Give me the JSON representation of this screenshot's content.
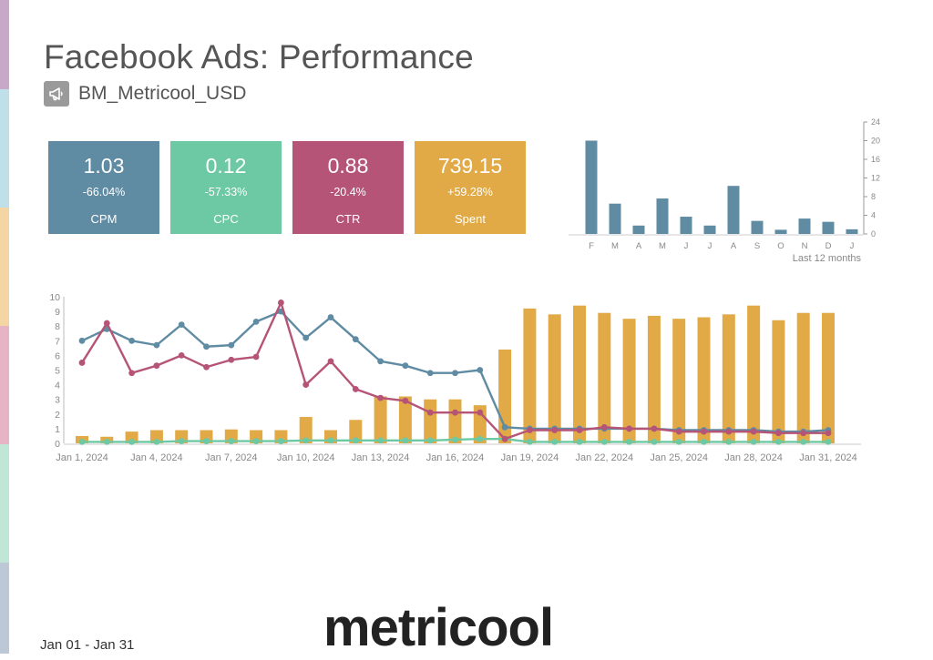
{
  "header": {
    "title": "Facebook Ads: Performance",
    "account": "BM_Metricool_USD"
  },
  "kpis": [
    {
      "value": "1.03",
      "change": "-66.04%",
      "label": "CPM",
      "color": "#5f8ba3"
    },
    {
      "value": "0.12",
      "change": "-57.33%",
      "label": "CPC",
      "color": "#6dc9a3"
    },
    {
      "value": "0.88",
      "change": "-20.4%",
      "label": "CTR",
      "color": "#b65477"
    },
    {
      "value": "739.15",
      "change": "+59.28%",
      "label": "Spent",
      "color": "#e1aa47"
    }
  ],
  "colors": {
    "strip": [
      "#c8a8c8",
      "#bfe0e8",
      "#f3d6a4",
      "#e6b4c4",
      "#bfe6d6",
      "#bcc8d6"
    ],
    "blue": "#5f8ba3",
    "green": "#6dc9a3",
    "pink": "#b65477",
    "orange": "#e1aa47",
    "axis": "#999999"
  },
  "chart_data": [
    {
      "type": "bar",
      "caption": "Last 12 months",
      "categories": [
        "F",
        "M",
        "A",
        "M",
        "J",
        "J",
        "A",
        "S",
        "O",
        "N",
        "D",
        "J"
      ],
      "values": [
        20,
        6.5,
        1.8,
        7.6,
        3.7,
        1.8,
        10.3,
        2.8,
        0.9,
        3.3,
        2.6,
        1
      ],
      "ylim": [
        0,
        24
      ],
      "yticks": [
        0,
        4,
        8,
        12,
        16,
        20,
        24
      ],
      "color": "#5f8ba3"
    },
    {
      "type": "bar+line",
      "x": [
        "Jan 1, 2024",
        "Jan 2, 2024",
        "Jan 3, 2024",
        "Jan 4, 2024",
        "Jan 5, 2024",
        "Jan 6, 2024",
        "Jan 7, 2024",
        "Jan 8, 2024",
        "Jan 9, 2024",
        "Jan 10, 2024",
        "Jan 11, 2024",
        "Jan 12, 2024",
        "Jan 13, 2024",
        "Jan 14, 2024",
        "Jan 15, 2024",
        "Jan 16, 2024",
        "Jan 17, 2024",
        "Jan 18, 2024",
        "Jan 19, 2024",
        "Jan 20, 2024",
        "Jan 21, 2024",
        "Jan 22, 2024",
        "Jan 23, 2024",
        "Jan 24, 2024",
        "Jan 25, 2024",
        "Jan 26, 2024",
        "Jan 27, 2024",
        "Jan 28, 2024",
        "Jan 29, 2024",
        "Jan 30, 2024",
        "Jan 31, 2024"
      ],
      "xtick_labels": [
        "Jan 1, 2024",
        "Jan 4, 2024",
        "Jan 7, 2024",
        "Jan 10, 2024",
        "Jan 13, 2024",
        "Jan 16, 2024",
        "Jan 19, 2024",
        "Jan 22, 2024",
        "Jan 25, 2024",
        "Jan 28, 2024",
        "Jan 31, 2024"
      ],
      "ylim": [
        0,
        10
      ],
      "yticks": [
        0,
        1,
        2,
        3,
        4,
        5,
        6,
        7,
        8,
        9,
        10
      ],
      "bars": {
        "color": "#e1aa47",
        "values": [
          0.5,
          0.45,
          0.8,
          0.9,
          0.9,
          0.9,
          0.95,
          0.9,
          0.9,
          1.8,
          0.9,
          1.6,
          3.2,
          3.2,
          3.0,
          3.0,
          2.6,
          6.4,
          9.2,
          8.8,
          9.4,
          8.9,
          8.5,
          8.7,
          8.5,
          8.6,
          8.8,
          9.4,
          8.4,
          8.9,
          8.9
        ]
      },
      "series": [
        {
          "color": "#5f8ba3",
          "values": [
            7.0,
            7.8,
            7.0,
            6.7,
            8.1,
            6.6,
            6.7,
            8.3,
            9.0,
            7.2,
            8.6,
            7.1,
            5.6,
            5.3,
            4.8,
            4.8,
            5.0,
            1.1,
            1.0,
            1.0,
            1.0,
            1.0,
            1.0,
            1.0,
            0.9,
            0.9,
            0.9,
            0.9,
            0.8,
            0.8,
            0.9
          ]
        },
        {
          "color": "#b65477",
          "values": [
            5.5,
            8.2,
            4.8,
            5.3,
            6.0,
            5.2,
            5.7,
            5.9,
            9.6,
            4.0,
            5.6,
            3.7,
            3.1,
            2.9,
            2.1,
            2.1,
            2.1,
            0.3,
            0.9,
            0.9,
            0.9,
            1.1,
            1.0,
            1.0,
            0.8,
            0.8,
            0.8,
            0.8,
            0.7,
            0.7,
            0.7
          ]
        },
        {
          "color": "#6dc9a3",
          "values": [
            0.1,
            0.1,
            0.1,
            0.1,
            0.15,
            0.15,
            0.15,
            0.15,
            0.15,
            0.2,
            0.2,
            0.2,
            0.2,
            0.2,
            0.2,
            0.25,
            0.3,
            0.3,
            0.1,
            0.1,
            0.1,
            0.1,
            0.1,
            0.1,
            0.1,
            0.1,
            0.1,
            0.1,
            0.1,
            0.1,
            0.1
          ]
        }
      ]
    }
  ],
  "footer": {
    "date_range": "Jan 01 - Jan 31",
    "logo_text": "metricool"
  }
}
